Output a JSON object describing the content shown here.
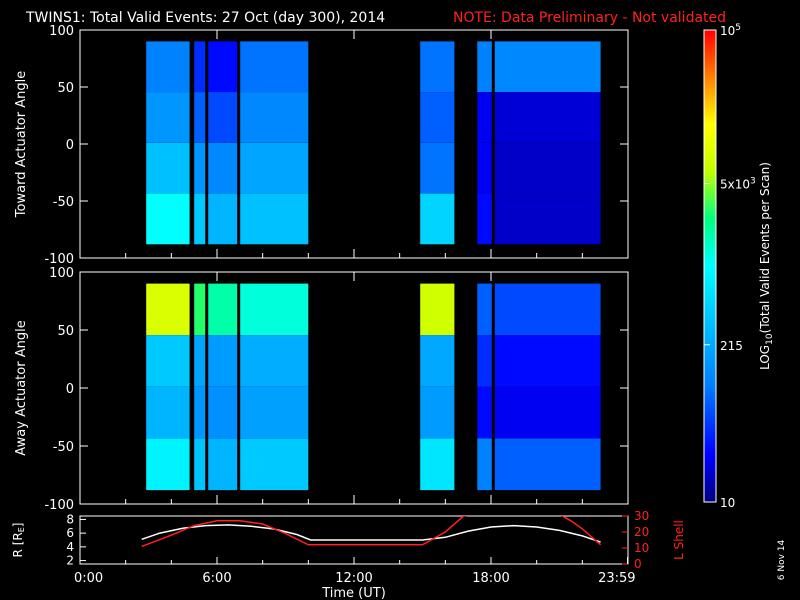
{
  "header": {
    "title": "TWINS1: Total Valid Events: 27 Oct (day 300), 2014",
    "note": "NOTE: Data Preliminary - Not validated"
  },
  "colors": {
    "background": "#000000",
    "text": "#ffffff",
    "note": "#ff2020",
    "orbit_r": "#ffffff",
    "orbit_l": "#ff2020"
  },
  "footer": {
    "generated": "6 Nov 14"
  },
  "chart_data": [
    {
      "type": "heatmap",
      "panel": "toward",
      "ylabel": "Toward Actuator Angle",
      "ylim": [
        -100,
        100
      ],
      "yticks": [
        "100",
        "50",
        "0",
        "-50",
        "-100"
      ],
      "ytick_values": [
        100,
        50,
        0,
        -50,
        -100
      ],
      "data_ylim": [
        -88,
        90
      ],
      "xlim": [
        0,
        24
      ],
      "coverage": [
        [
          2.9,
          4.8
        ],
        [
          5.0,
          5.5
        ],
        [
          5.6,
          6.9
        ],
        [
          7.0,
          10.0
        ],
        [
          14.9,
          16.4
        ],
        [
          17.4,
          18.05
        ],
        [
          18.15,
          22.8
        ]
      ],
      "gaps": [
        4.9,
        5.55,
        6.95,
        18.1
      ],
      "cell_values": [
        [
          80,
          40,
          30,
          70,
          70,
          80,
          90
        ],
        [
          110,
          60,
          50,
          90,
          60,
          25,
          20
        ],
        [
          220,
          110,
          90,
          140,
          70,
          25,
          18
        ],
        [
          600,
          250,
          180,
          220,
          300,
          30,
          18
        ]
      ]
    },
    {
      "type": "heatmap",
      "panel": "away",
      "ylabel": "Away Actuator Angle",
      "ylim": [
        -100,
        100
      ],
      "yticks": [
        "100",
        "50",
        "0",
        "-50",
        "-100"
      ],
      "ytick_values": [
        100,
        50,
        0,
        -50,
        -100
      ],
      "data_ylim": [
        -88,
        90
      ],
      "xlim": [
        0,
        24
      ],
      "coverage": [
        [
          2.9,
          4.8
        ],
        [
          5.0,
          5.5
        ],
        [
          5.6,
          6.9
        ],
        [
          7.0,
          10.0
        ],
        [
          14.9,
          16.4
        ],
        [
          17.4,
          18.05
        ],
        [
          18.15,
          22.8
        ]
      ],
      "gaps": [
        4.9,
        5.55,
        6.95,
        18.1
      ],
      "cell_values": [
        [
          7000,
          2000,
          1200,
          800,
          6000,
          60,
          50
        ],
        [
          250,
          140,
          120,
          160,
          150,
          40,
          30
        ],
        [
          180,
          110,
          100,
          130,
          120,
          30,
          25
        ],
        [
          500,
          230,
          180,
          250,
          400,
          80,
          60
        ]
      ]
    },
    {
      "type": "colorbar",
      "label_log": "LOG",
      "label_sub": "10",
      "label_rest": "(Total Valid Events per Scan)",
      "scale": "log",
      "range": [
        10,
        100000
      ],
      "ticks": [
        {
          "value": 100000,
          "base": "10",
          "exp": "5"
        },
        {
          "value": 5000,
          "base": "5x10",
          "exp": "3"
        },
        {
          "value": 215,
          "base": "215",
          "exp": ""
        },
        {
          "value": 10,
          "base": "10",
          "exp": ""
        }
      ],
      "palette": [
        "#000080",
        "#0000ff",
        "#0080ff",
        "#00c0ff",
        "#00ffff",
        "#00ff80",
        "#c0ff00",
        "#ffff00",
        "#ff8000",
        "#ff0000"
      ]
    },
    {
      "type": "line",
      "panel": "orbit",
      "xlabel": "Time (UT)",
      "xticks": [
        "0:00",
        "6:00",
        "12:00",
        "18:00",
        "23:59"
      ],
      "xtick_values": [
        0,
        6,
        12,
        18,
        23.98
      ],
      "xlim": [
        0,
        24
      ],
      "left_axis": {
        "label": "R [R",
        "label_sub": "E",
        "label_end": "]",
        "ylim": [
          1.5,
          8.5
        ],
        "ticks": [
          "8",
          "6",
          "4",
          "2"
        ],
        "tick_values": [
          8,
          6,
          4,
          2
        ]
      },
      "right_axis": {
        "label": "L Shell",
        "ylim": [
          0,
          30
        ],
        "ticks": [
          "30",
          "20",
          "10",
          "0"
        ],
        "tick_values": [
          30,
          20,
          10,
          0
        ]
      },
      "series": [
        {
          "axis": "left",
          "x": [
            2.7,
            3.5,
            4.5,
            5.5,
            6.5,
            7.5,
            8.5,
            9.5,
            10.1,
            13.0,
            15.0,
            16.0,
            17.0,
            18.0,
            19.0,
            20.0,
            21.0,
            22.0,
            22.8
          ],
          "y": [
            5.1,
            6.0,
            6.7,
            7.1,
            7.2,
            7.0,
            6.6,
            5.8,
            5.0,
            5.0,
            5.0,
            5.4,
            6.3,
            6.9,
            7.1,
            6.9,
            6.4,
            5.6,
            4.7
          ]
        },
        {
          "axis": "right",
          "x": [
            2.7,
            4.0,
            5.0,
            6.0,
            7.0,
            8.0,
            9.0,
            10.0,
            13.0,
            15.0,
            16.0,
            16.8,
            17.2,
            21.0,
            21.5,
            22.0,
            22.8
          ],
          "y": [
            11,
            18,
            24,
            27,
            27,
            25,
            19,
            12,
            12,
            12,
            20,
            30,
            31,
            31,
            27,
            22,
            12
          ]
        }
      ]
    }
  ]
}
